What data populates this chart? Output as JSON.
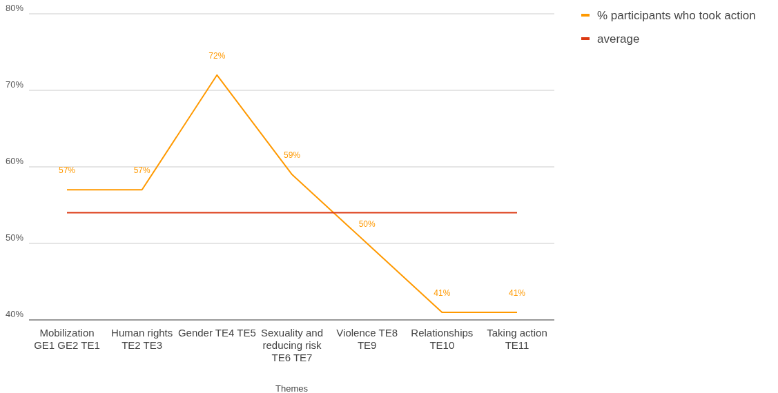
{
  "chart_data": {
    "type": "line",
    "xlabel": "Themes",
    "categories": [
      "Mobilization GE1 GE2 TE1",
      "Human rights TE2 TE3",
      "Gender TE4 TE5",
      "Sexuality and reducing risk TE6 TE7",
      "Violence TE8 TE9",
      "Relationships TE10",
      "Taking action TE11"
    ],
    "series": [
      {
        "name": "% participants who took action",
        "color": "#ff9900",
        "values": [
          57,
          57,
          72,
          59,
          50,
          41,
          41
        ],
        "value_labels": [
          "57%",
          "57%",
          "72%",
          "59%",
          "50%",
          "41%",
          "41%"
        ]
      },
      {
        "name": "average",
        "color": "#dc3912",
        "values": [
          54,
          54,
          54,
          54,
          54,
          54,
          54
        ]
      }
    ],
    "ylim": [
      40,
      80
    ],
    "yticks": [
      {
        "value": 40,
        "label": "40%"
      },
      {
        "value": 50,
        "label": "50%"
      },
      {
        "value": 60,
        "label": "60%"
      },
      {
        "value": 70,
        "label": "70%"
      },
      {
        "value": 80,
        "label": "80%"
      }
    ],
    "grid": "y",
    "legend": "top right",
    "marker": "none",
    "line_style": "solid"
  }
}
